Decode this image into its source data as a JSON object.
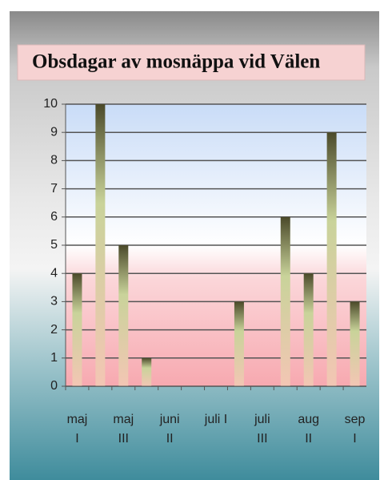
{
  "chart_data": {
    "type": "bar",
    "title": "Obsdagar av mosnäppa vid Välen",
    "categories": [
      "maj I",
      null,
      "maj III",
      null,
      "juni II",
      null,
      "juli I",
      null,
      "juli III",
      null,
      "aug II",
      null,
      "sep I"
    ],
    "values": [
      4,
      10,
      5,
      1,
      0,
      0,
      0,
      3,
      0,
      6,
      4,
      9,
      3
    ],
    "ylim": [
      0,
      10
    ],
    "yticks": [
      0,
      1,
      2,
      3,
      4,
      5,
      6,
      7,
      8,
      9,
      10
    ],
    "grid": true
  }
}
